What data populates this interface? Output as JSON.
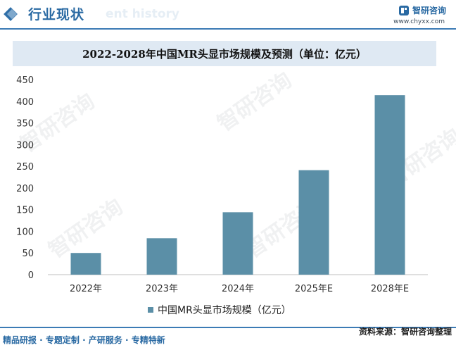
{
  "header": {
    "section_title": "行业现状",
    "section_ghost": "ent history",
    "logo_name": "智研咨询",
    "site_url": "www.chyxx.com"
  },
  "chart_data": {
    "type": "bar",
    "title": "2022-2028年中国MR头显市场规模及预测（单位：亿元）",
    "categories": [
      "2022年",
      "2023年",
      "2024年",
      "2025年E",
      "2028年E"
    ],
    "series": [
      {
        "name": "中国MR头显市场规模（亿元）",
        "values": [
          50,
          84,
          144,
          241,
          414
        ]
      }
    ],
    "ylim": [
      0,
      450
    ],
    "yticks": [
      0,
      50,
      100,
      150,
      200,
      250,
      300,
      350,
      400,
      450
    ],
    "xlabel": "",
    "ylabel": "",
    "bar_color": "#5b8fa7",
    "legend_position": "bottom"
  },
  "watermark_text": "智研咨询",
  "footer": {
    "source": "资料来源：智研咨询整理",
    "services": "精品研报 · 专题定制 · 产研服务 · 专精特新"
  },
  "colors": {
    "accent": "#2a6aa3",
    "title_box": "#dfe9f3",
    "bar": "#5b8fa7"
  }
}
